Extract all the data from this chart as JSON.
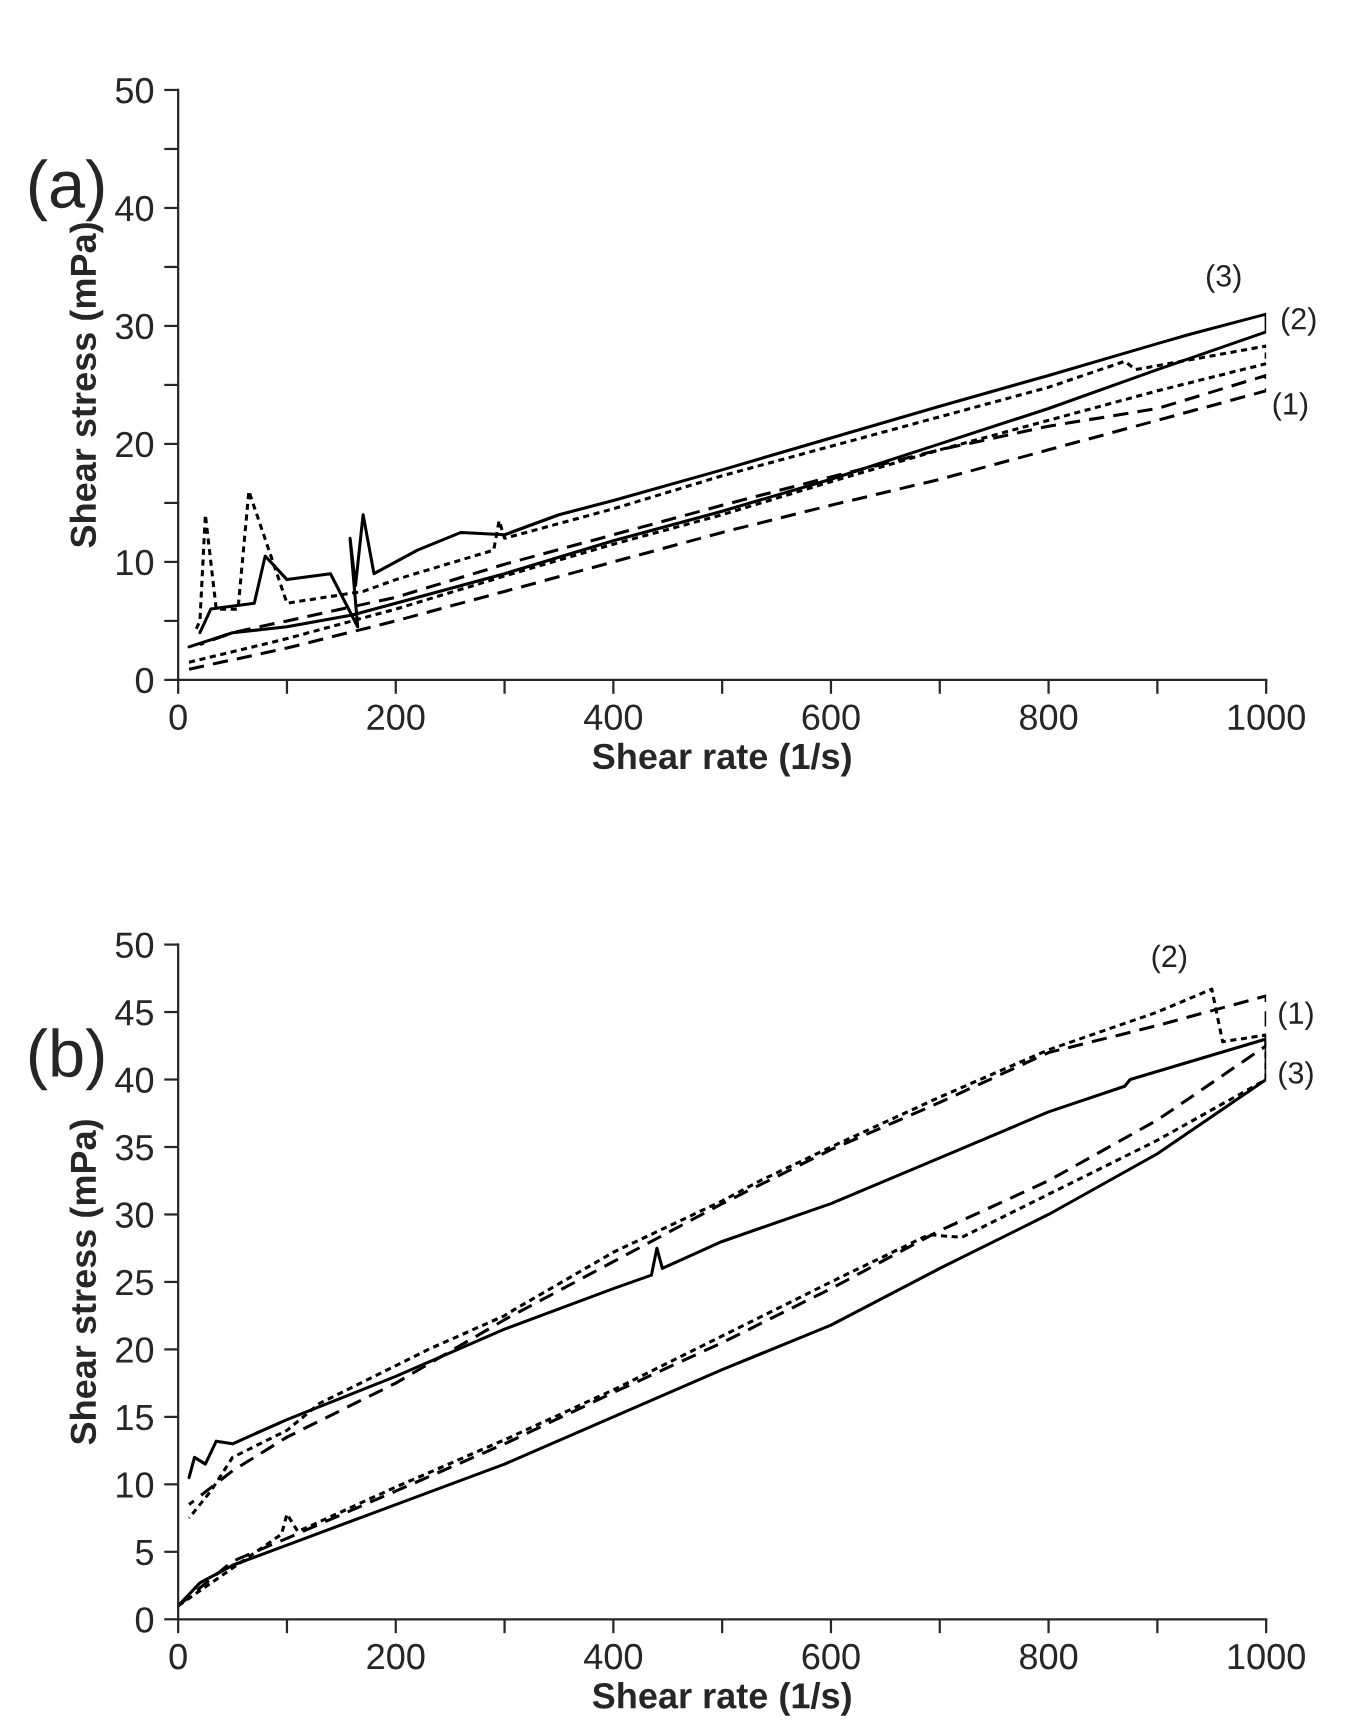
{
  "chart_data": [
    {
      "type": "line",
      "xlabel": "Shear rate (1/s)",
      "ylabel": "Shear stress (mPa)",
      "annotations": [
        "(a)"
      ],
      "xlim": [
        0,
        1000
      ],
      "ylim": [
        0,
        50
      ],
      "xticks": [
        0,
        {
          "value": 100,
          "label": null
        },
        200,
        {
          "value": 300,
          "label": null
        },
        400,
        {
          "value": 500,
          "label": null
        },
        600,
        {
          "value": 700,
          "label": null
        },
        800,
        {
          "value": 900,
          "label": null
        },
        1000
      ],
      "yticks": [
        0,
        {
          "value": 5,
          "label": null
        },
        10,
        {
          "value": 15,
          "label": null
        },
        20,
        {
          "value": 25,
          "label": null
        },
        30,
        {
          "value": 35,
          "label": null
        },
        40,
        {
          "value": 45,
          "label": null
        },
        50
      ],
      "grid": false,
      "legend": false,
      "series": [
        {
          "name": "(1)",
          "color": "#000000",
          "line_style": "dashed",
          "x": [
            10,
            100,
            200,
            300,
            400,
            500,
            600,
            700,
            800,
            900,
            1000,
            1000,
            900,
            800,
            700,
            600,
            500,
            400,
            300,
            200,
            100,
            50,
            20
          ],
          "values": [
            0.9,
            2.7,
            5,
            7.5,
            10,
            12.5,
            14.8,
            17,
            19.5,
            22,
            24.5,
            25.8,
            23,
            21.5,
            19.5,
            17.2,
            14.8,
            12.3,
            9.8,
            7,
            5,
            4,
            3
          ]
        },
        {
          "name": "(2)",
          "color": "#000000",
          "line_style": "dotted",
          "x": [
            10,
            100,
            200,
            300,
            400,
            500,
            600,
            700,
            800,
            900,
            1000,
            1000,
            880,
            870,
            800,
            700,
            600,
            500,
            400,
            300,
            295,
            290,
            200,
            170,
            100,
            65,
            55,
            35,
            25,
            20,
            15
          ],
          "values": [
            1.5,
            3.5,
            6,
            8.8,
            11.5,
            14,
            16.8,
            19.5,
            22,
            24.5,
            26.8,
            28.3,
            26.3,
            27,
            24.8,
            22.3,
            19.8,
            17.3,
            14.5,
            12,
            13.5,
            11,
            8.5,
            7.5,
            6.5,
            16,
            6,
            6,
            14,
            5,
            4
          ]
        },
        {
          "name": "(3)",
          "color": "#000000",
          "line_style": "solid",
          "x": [
            10,
            50,
            100,
            160,
            200,
            300,
            400,
            500,
            600,
            700,
            800,
            900,
            1000,
            1000,
            930,
            900,
            800,
            700,
            600,
            500,
            400,
            350,
            300,
            260,
            220,
            180,
            170,
            163,
            158,
            165,
            140,
            100,
            80,
            70,
            30,
            20
          ],
          "values": [
            2.8,
            4,
            4.5,
            5.5,
            6.5,
            9,
            11.8,
            14.3,
            17,
            20,
            23,
            26.3,
            29.5,
            31,
            29.3,
            28.5,
            25.8,
            23.2,
            20.5,
            17.8,
            15.2,
            14,
            12.3,
            12.5,
            11,
            9,
            14,
            8,
            12,
            4.5,
            9,
            8.5,
            10.5,
            6.5,
            6,
            4
          ]
        }
      ]
    },
    {
      "type": "line",
      "xlabel": "Shear rate (1/s)",
      "ylabel": "Shear stress (mPa)",
      "annotations": [
        "(b)"
      ],
      "xlim": [
        0,
        1000
      ],
      "ylim": [
        0,
        50
      ],
      "xticks": [
        0,
        {
          "value": 100,
          "label": null
        },
        200,
        {
          "value": 300,
          "label": null
        },
        400,
        {
          "value": 500,
          "label": null
        },
        600,
        {
          "value": 700,
          "label": null
        },
        800,
        {
          "value": 900,
          "label": null
        },
        1000
      ],
      "yticks": [
        0,
        5,
        10,
        15,
        20,
        25,
        30,
        35,
        40,
        45,
        50
      ],
      "grid": false,
      "legend": false,
      "series": [
        {
          "name": "(1)",
          "color": "#000000",
          "line_style": "dashed",
          "x": [
            0,
            50,
            100,
            200,
            300,
            400,
            500,
            600,
            700,
            800,
            900,
            1000,
            1000,
            900,
            800,
            700,
            600,
            500,
            400,
            300,
            200,
            100,
            50,
            10
          ],
          "values": [
            1,
            4.3,
            6,
            9.5,
            13,
            16.8,
            20.5,
            24.5,
            28.8,
            32.5,
            37,
            42.5,
            46.2,
            44,
            42,
            38.3,
            34.8,
            30.8,
            26.5,
            22.2,
            17.5,
            13.5,
            11,
            8.5
          ]
        },
        {
          "name": "(2)",
          "color": "#000000",
          "line_style": "dotted",
          "x": [
            0,
            95,
            100,
            110,
            200,
            300,
            400,
            500,
            600,
            690,
            720,
            800,
            900,
            1000,
            1000,
            960,
            950,
            900,
            800,
            700,
            600,
            535,
            500,
            400,
            310,
            300,
            230,
            180,
            130,
            100,
            50,
            30,
            10
          ],
          "values": [
            1,
            6.3,
            7.8,
            6.5,
            9.8,
            13.3,
            17,
            21,
            25,
            28.5,
            28.3,
            31.5,
            35.5,
            40,
            43.3,
            42.8,
            46.7,
            45,
            42.2,
            38.7,
            35,
            32.5,
            31,
            27.2,
            23,
            22.5,
            20,
            18,
            16,
            14,
            12,
            9.5,
            7.5
          ]
        },
        {
          "name": "(3)",
          "color": "#000000",
          "line_style": "solid",
          "x": [
            0,
            20,
            50,
            100,
            200,
            300,
            400,
            500,
            600,
            700,
            800,
            900,
            1000,
            1000,
            875,
            870,
            800,
            700,
            600,
            500,
            445,
            440,
            435,
            400,
            300,
            200,
            100,
            50,
            35,
            25,
            15,
            10
          ],
          "values": [
            1,
            2.7,
            4,
            5.5,
            8.5,
            11.5,
            15,
            18.5,
            21.8,
            26,
            30,
            34.5,
            40,
            43,
            40,
            39.5,
            37.6,
            34.2,
            30.8,
            28,
            26,
            27.5,
            25.5,
            24.5,
            21.5,
            18,
            14.8,
            13,
            13.2,
            11.5,
            12,
            10.5
          ]
        }
      ]
    }
  ]
}
